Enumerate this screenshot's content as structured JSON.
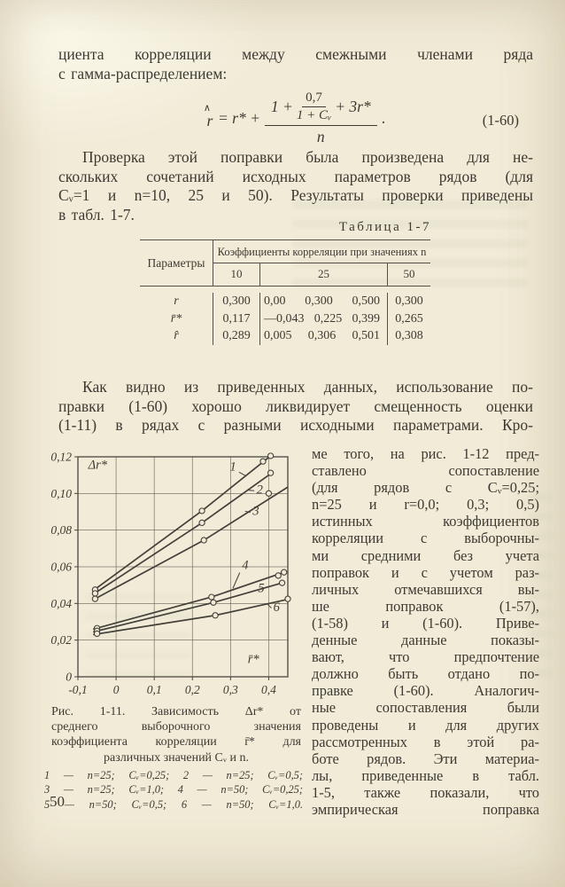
{
  "page": {
    "number": "50"
  },
  "intro": {
    "lines": [
      "циента корреляции между смежными членами ряда",
      "с гамма-распределением:"
    ]
  },
  "formula": {
    "lhs_letter": "r",
    "hat": "∧",
    "eq": "= r* +",
    "num_lead": "1 +",
    "small_num": "0,7",
    "small_den": "1 + Cᵥ",
    "num_tail": "+ 3r*",
    "den": "n",
    "dot": ".",
    "tag": "(1-60)"
  },
  "para2": {
    "lines": [
      "Проверка этой поправки была произведена для не-",
      "скольких сочетаний исходных параметров рядов (для",
      "Cᵥ=1 и n=10, 25 и 50). Результаты проверки приведены",
      "в табл. 1-7."
    ]
  },
  "table": {
    "caption": "Таблица 1-7",
    "col1_header": "Параметры",
    "group_header": "Коэффициенты корреляции при значениях n",
    "subheaders": [
      "10",
      "25",
      "50"
    ],
    "rows": [
      {
        "label": "r",
        "n10": "0,300",
        "n25": [
          "0,00",
          "0,300",
          "0,500"
        ],
        "n50": "0,300"
      },
      {
        "label": "r̄*",
        "n10": "0,117",
        "n25": [
          "—0,043",
          "0,225",
          "0,399"
        ],
        "n50": "0,265"
      },
      {
        "label": "r̂",
        "n10": "0,289",
        "n25": [
          "0,005",
          "0,306",
          "0,501"
        ],
        "n50": "0,308"
      }
    ]
  },
  "para3": {
    "lines": [
      "Как видно из приведенных данных, использование по-",
      "правки (1-60) хорошо ликвидирует смещенность оценки",
      "(1-11) в рядах с разными исходными параметрами. Кро-"
    ]
  },
  "column": {
    "lines": [
      "ме того, на рис. 1-12 пред-",
      "ставлено сопоставление",
      "(для рядов с Cᵥ=0,25;",
      "n=25 и r=0,0; 0,3; 0,5)",
      "истинных коэффициентов",
      "корреляции с выборочны-",
      "ми средними без учета",
      "поправок и с учетом раз-",
      "личных отмечавшихся вы-",
      "ше поправок (1-57),",
      "(1-58) и (1-60). Приве-",
      "денные данные показы-",
      "вают, что предпочтение",
      "должно быть отдано по-",
      "правке (1-60). Аналогич-",
      "ные сопоставления были",
      "проведены и для других",
      "рассмотренных в этой ра-",
      "боте рядов. Эти материа-",
      "лы, приведенные в табл.",
      "1-5, также показали, что",
      "эмпирическая поправка"
    ]
  },
  "figure": {
    "caption_lines": [
      "Рис. 1-11. Зависимость Δr* от",
      "среднего выборочного значения",
      "коэффициента корреляции r̄* для",
      "различных значений Cᵥ и n."
    ],
    "legend_lines": [
      "1 — n=25; Cᵥ=0,25; 2 — n=25; Cᵥ=0,5;",
      "3 — n=25; Cᵥ=1,0; 4 — n=50; Cᵥ=0,25;",
      "5 — n=50; Cᵥ=0,5; 6 — n=50; Cᵥ=1,0."
    ]
  },
  "chart_data": {
    "type": "line",
    "title": "Рис. 1-11. Зависимость Δr* от среднего выборочного значения коэффициента корреляции r̄* для различных значений Cᵥ и n",
    "xlabel": "r̄*",
    "ylabel": "Δr*",
    "xlim": [
      -0.1,
      0.45
    ],
    "ylim": [
      0,
      0.12
    ],
    "grid": true,
    "legend_position": "below",
    "xticks": [
      {
        "v": -0.1,
        "label": "-0,1"
      },
      {
        "v": 0,
        "label": "0"
      },
      {
        "v": 0.1,
        "label": "0,1"
      },
      {
        "v": 0.2,
        "label": "0,2"
      },
      {
        "v": 0.3,
        "label": "0,3"
      },
      {
        "v": 0.4,
        "label": "0,4"
      }
    ],
    "yticks": [
      {
        "v": 0,
        "label": "0"
      },
      {
        "v": 0.02,
        "label": "0,02"
      },
      {
        "v": 0.04,
        "label": "0,04"
      },
      {
        "v": 0.06,
        "label": "0,06"
      },
      {
        "v": 0.08,
        "label": "0,08"
      },
      {
        "v": 0.1,
        "label": "0,10"
      },
      {
        "v": 0.12,
        "label": "0,12"
      }
    ],
    "ylabel_pos": [
      -0.073,
      0.1135
    ],
    "xlabel_pos": [
      0.345,
      0.0075
    ],
    "series": [
      {
        "name": "1",
        "params": "n=25; Cv=0,25",
        "line": [
          [
            -0.06,
            0.047
          ],
          [
            0.225,
            0.0905
          ],
          [
            0.405,
            0.1205
          ]
        ],
        "markers": [
          [
            -0.055,
            0.0475
          ],
          [
            0.225,
            0.0905
          ],
          [
            0.385,
            0.1175
          ],
          [
            0.405,
            0.1205
          ]
        ],
        "label": {
          "x": 0.298,
          "y": 0.1125
        },
        "leader": [
          [
            0.322,
            0.1116
          ],
          [
            0.34,
            0.1096
          ]
        ]
      },
      {
        "name": "2",
        "params": "n=25; Cv=0,5",
        "line": [
          [
            -0.06,
            0.045
          ],
          [
            0.225,
            0.084
          ],
          [
            0.41,
            0.1115
          ]
        ],
        "markers": [
          [
            -0.055,
            0.0455
          ],
          [
            0.225,
            0.084
          ],
          [
            0.405,
            0.1112
          ]
        ],
        "label": {
          "x": 0.368,
          "y": 0.1
        },
        "leader": [
          [
            0.362,
            0.1015
          ],
          [
            0.347,
            0.1018
          ]
        ]
      },
      {
        "name": "3",
        "params": "n=25; Cv=1,0",
        "line": [
          [
            -0.06,
            0.042
          ],
          [
            0.23,
            0.0745
          ],
          [
            0.45,
            0.1035
          ]
        ],
        "markers": [
          [
            -0.055,
            0.0425
          ],
          [
            0.23,
            0.0745
          ],
          [
            0.4,
            0.1
          ]
        ],
        "label": {
          "x": 0.358,
          "y": 0.0882
        },
        "leader": [
          [
            0.352,
            0.0897
          ],
          [
            0.338,
            0.0903
          ]
        ]
      },
      {
        "name": "4",
        "params": "n=50; Cv=0,25",
        "line": [
          [
            -0.06,
            0.026
          ],
          [
            0.25,
            0.0435
          ],
          [
            0.44,
            0.057
          ]
        ],
        "markers": [
          [
            -0.05,
            0.0265
          ],
          [
            0.25,
            0.0435
          ],
          [
            0.425,
            0.0552
          ],
          [
            0.44,
            0.057
          ]
        ],
        "label": {
          "x": 0.33,
          "y": 0.0588
        },
        "leader": [
          [
            0.324,
            0.0568
          ],
          [
            0.306,
            0.0482
          ]
        ]
      },
      {
        "name": "5",
        "params": "n=50; Cv=0,5",
        "line": [
          [
            -0.06,
            0.0245
          ],
          [
            0.255,
            0.0405
          ],
          [
            0.44,
            0.0515
          ]
        ],
        "markers": [
          [
            -0.05,
            0.025
          ],
          [
            0.255,
            0.0405
          ],
          [
            0.435,
            0.0512
          ]
        ],
        "label": {
          "x": 0.372,
          "y": 0.0462
        },
        "leader": [
          [
            0.366,
            0.047
          ],
          [
            0.352,
            0.0463
          ]
        ]
      },
      {
        "name": "6",
        "params": "n=50; Cv=1,0",
        "line": [
          [
            -0.06,
            0.023
          ],
          [
            0.26,
            0.0335
          ],
          [
            0.455,
            0.0425
          ]
        ],
        "markers": [
          [
            -0.05,
            0.0235
          ],
          [
            0.26,
            0.0335
          ],
          [
            0.45,
            0.0425
          ]
        ],
        "label": {
          "x": 0.412,
          "y": 0.0358
        },
        "leader": [
          [
            0.407,
            0.0375
          ],
          [
            0.396,
            0.0398
          ]
        ]
      }
    ]
  }
}
